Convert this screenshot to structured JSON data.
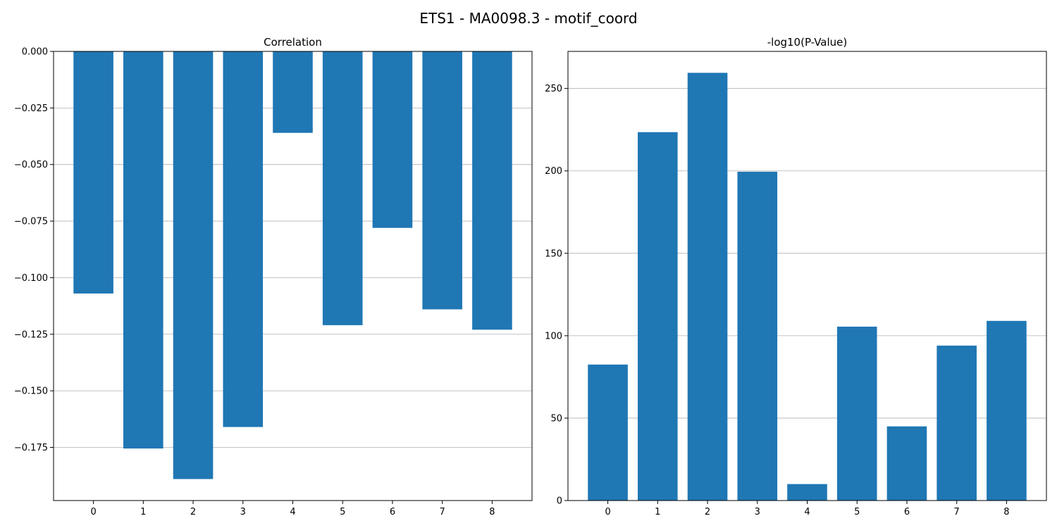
{
  "figure": {
    "title": "ETS1 - MA0098.3 - motif_coord"
  },
  "chart_data": [
    {
      "type": "bar",
      "title": "Correlation",
      "xlabel": "",
      "ylabel": "",
      "categories": [
        "0",
        "1",
        "2",
        "3",
        "4",
        "5",
        "6",
        "7",
        "8"
      ],
      "values": [
        -0.107,
        -0.1755,
        -0.189,
        -0.166,
        -0.036,
        -0.121,
        -0.078,
        -0.114,
        -0.123
      ],
      "ylim": [
        -0.1985,
        0.0
      ],
      "yticks": [
        0.0,
        -0.025,
        -0.05,
        -0.075,
        -0.1,
        -0.125,
        -0.15,
        -0.175
      ],
      "ytick_labels": [
        "0.000",
        "−0.025",
        "−0.050",
        "−0.075",
        "−0.100",
        "−0.125",
        "−0.150",
        "−0.175"
      ],
      "grid": "y",
      "color": "#1f77b4"
    },
    {
      "type": "bar",
      "title": "-log10(P-Value)",
      "xlabel": "",
      "ylabel": "",
      "categories": [
        "0",
        "1",
        "2",
        "3",
        "4",
        "5",
        "6",
        "7",
        "8"
      ],
      "values": [
        82.5,
        223.5,
        259.5,
        199.5,
        10,
        105.5,
        45,
        94,
        109
      ],
      "ylim": [
        0,
        272.5
      ],
      "yticks": [
        0,
        50,
        100,
        150,
        200,
        250
      ],
      "ytick_labels": [
        "0",
        "50",
        "100",
        "150",
        "200",
        "250"
      ],
      "grid": "y",
      "color": "#1f77b4"
    }
  ]
}
